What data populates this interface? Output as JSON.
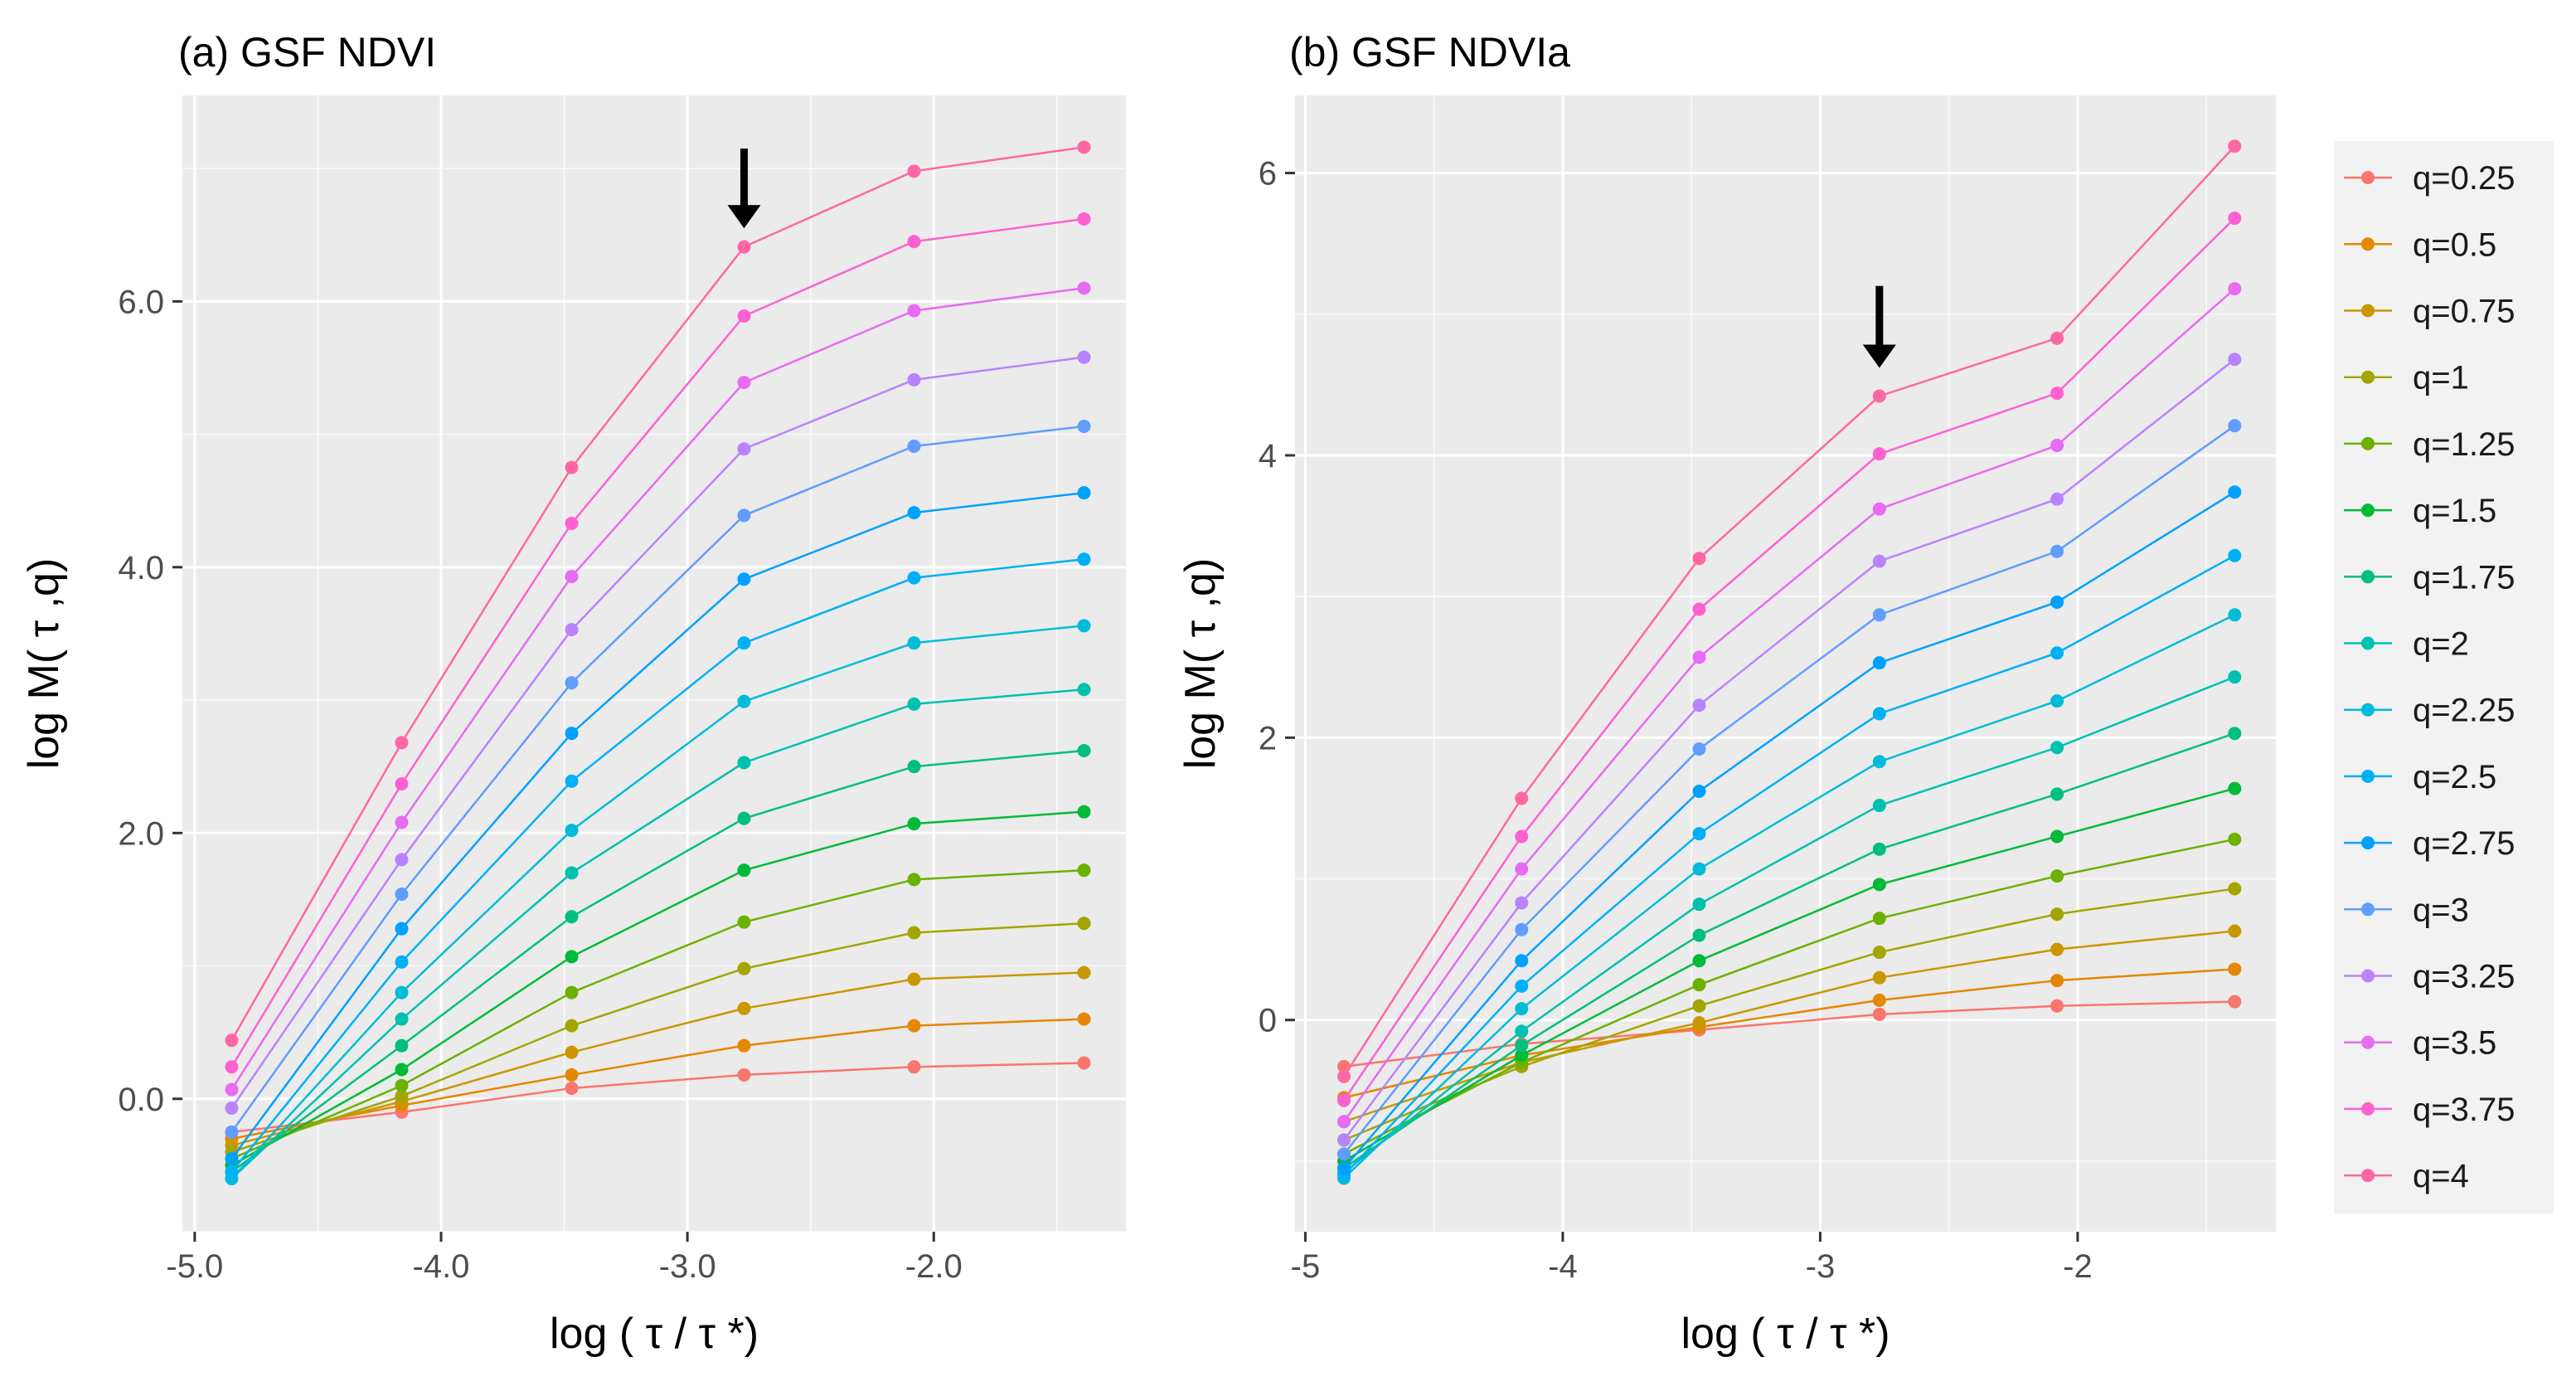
{
  "chart_data": [
    {
      "type": "line",
      "panel_id": "a",
      "title": "(a) GSF NDVI",
      "xlabel": "log ( τ / τ *)",
      "ylabel": "log M( τ ,q)",
      "x": [
        -4.85,
        -4.16,
        -3.47,
        -2.77,
        -2.08,
        -1.39
      ],
      "xlim": [
        -5.05,
        -1.22
      ],
      "ylim": [
        -1.0,
        7.55
      ],
      "x_ticks": [
        -5.0,
        -4.0,
        -3.0,
        -2.0
      ],
      "x_tick_labels": [
        "-5.0",
        "-4.0",
        "-3.0",
        "-2.0"
      ],
      "y_ticks": [
        0.0,
        2.0,
        4.0,
        6.0
      ],
      "y_tick_labels": [
        "0.0",
        "2.0",
        "4.0",
        "6.0"
      ],
      "grid": true,
      "arrow": {
        "x": -2.77,
        "y_tip": 6.55,
        "y_tail": 7.15
      },
      "series": [
        {
          "name": "q=0.25",
          "values": [
            -0.25,
            -0.1,
            0.08,
            0.18,
            0.24,
            0.27
          ]
        },
        {
          "name": "q=0.5",
          "values": [
            -0.3,
            -0.05,
            0.18,
            0.4,
            0.55,
            0.6
          ]
        },
        {
          "name": "q=0.75",
          "values": [
            -0.35,
            -0.02,
            0.35,
            0.68,
            0.9,
            0.95
          ]
        },
        {
          "name": "q=1",
          "values": [
            -0.4,
            0.02,
            0.55,
            0.98,
            1.25,
            1.32
          ]
        },
        {
          "name": "q=1.25",
          "values": [
            -0.45,
            0.1,
            0.8,
            1.33,
            1.65,
            1.72
          ]
        },
        {
          "name": "q=1.5",
          "values": [
            -0.5,
            0.22,
            1.07,
            1.72,
            2.07,
            2.16
          ]
        },
        {
          "name": "q=1.75",
          "values": [
            -0.55,
            0.4,
            1.37,
            2.11,
            2.5,
            2.62
          ]
        },
        {
          "name": "q=2",
          "values": [
            -0.6,
            0.6,
            1.7,
            2.53,
            2.97,
            3.08
          ]
        },
        {
          "name": "q=2.25",
          "values": [
            -0.6,
            0.8,
            2.02,
            2.99,
            3.43,
            3.56
          ]
        },
        {
          "name": "q=2.5",
          "values": [
            -0.55,
            1.03,
            2.39,
            3.43,
            3.92,
            4.06
          ]
        },
        {
          "name": "q=2.75",
          "values": [
            -0.45,
            1.28,
            2.75,
            3.91,
            4.41,
            4.56
          ]
        },
        {
          "name": "q=3",
          "values": [
            -0.25,
            1.54,
            3.13,
            4.39,
            4.91,
            5.06
          ]
        },
        {
          "name": "q=3.25",
          "values": [
            -0.07,
            1.8,
            3.53,
            4.89,
            5.41,
            5.58
          ]
        },
        {
          "name": "q=3.5",
          "values": [
            0.07,
            2.08,
            3.93,
            5.39,
            5.93,
            6.1
          ]
        },
        {
          "name": "q=3.75",
          "values": [
            0.24,
            2.37,
            4.33,
            5.89,
            6.45,
            6.62
          ]
        },
        {
          "name": "q=4",
          "values": [
            0.44,
            2.68,
            4.75,
            6.41,
            6.98,
            7.16
          ]
        }
      ]
    },
    {
      "type": "line",
      "panel_id": "b",
      "title": "(b) GSF NDVIa",
      "xlabel": "log ( τ / τ *)",
      "ylabel": "log M( τ ,q)",
      "x": [
        -4.85,
        -4.16,
        -3.47,
        -2.77,
        -2.08,
        -1.39
      ],
      "xlim": [
        -5.04,
        -1.23
      ],
      "ylim": [
        -1.5,
        6.55
      ],
      "x_ticks": [
        -5,
        -4,
        -3,
        -2
      ],
      "x_tick_labels": [
        "-5",
        "-4",
        "-3",
        "-2"
      ],
      "y_ticks": [
        0,
        2,
        4,
        6
      ],
      "y_tick_labels": [
        "0",
        "2",
        "4",
        "6"
      ],
      "grid": true,
      "arrow": {
        "x": -2.77,
        "y_tip": 4.62,
        "y_tail": 5.2
      },
      "series": [
        {
          "name": "q=0.25",
          "values": [
            -0.33,
            -0.17,
            -0.07,
            0.04,
            0.1,
            0.13
          ]
        },
        {
          "name": "q=0.5",
          "values": [
            -0.55,
            -0.25,
            -0.05,
            0.14,
            0.28,
            0.36
          ]
        },
        {
          "name": "q=0.75",
          "values": [
            -0.72,
            -0.3,
            -0.02,
            0.3,
            0.5,
            0.63
          ]
        },
        {
          "name": "q=1",
          "values": [
            -0.85,
            -0.33,
            0.1,
            0.48,
            0.75,
            0.93
          ]
        },
        {
          "name": "q=1.25",
          "values": [
            -0.95,
            -0.3,
            0.25,
            0.72,
            1.02,
            1.28
          ]
        },
        {
          "name": "q=1.5",
          "values": [
            -1.0,
            -0.25,
            0.42,
            0.96,
            1.3,
            1.64
          ]
        },
        {
          "name": "q=1.75",
          "values": [
            -1.05,
            -0.18,
            0.6,
            1.21,
            1.6,
            2.03
          ]
        },
        {
          "name": "q=2",
          "values": [
            -1.08,
            -0.08,
            0.82,
            1.52,
            1.93,
            2.43
          ]
        },
        {
          "name": "q=2.25",
          "values": [
            -1.12,
            0.08,
            1.07,
            1.83,
            2.26,
            2.87
          ]
        },
        {
          "name": "q=2.5",
          "values": [
            -1.1,
            0.24,
            1.32,
            2.17,
            2.6,
            3.29
          ]
        },
        {
          "name": "q=2.75",
          "values": [
            -1.05,
            0.42,
            1.62,
            2.53,
            2.96,
            3.74
          ]
        },
        {
          "name": "q=3",
          "values": [
            -0.95,
            0.64,
            1.92,
            2.87,
            3.32,
            4.21
          ]
        },
        {
          "name": "q=3.25",
          "values": [
            -0.85,
            0.83,
            2.23,
            3.25,
            3.69,
            4.68
          ]
        },
        {
          "name": "q=3.5",
          "values": [
            -0.72,
            1.07,
            2.57,
            3.62,
            4.07,
            5.18
          ]
        },
        {
          "name": "q=3.75",
          "values": [
            -0.57,
            1.3,
            2.91,
            4.01,
            4.44,
            5.68
          ]
        },
        {
          "name": "q=4",
          "values": [
            -0.4,
            1.57,
            3.27,
            4.42,
            4.83,
            6.19
          ]
        }
      ]
    }
  ],
  "legend": {
    "placement": "right",
    "entries": [
      "q=0.25",
      "q=0.5",
      "q=0.75",
      "q=1",
      "q=1.25",
      "q=1.5",
      "q=1.75",
      "q=2",
      "q=2.25",
      "q=2.5",
      "q=2.75",
      "q=3",
      "q=3.25",
      "q=3.5",
      "q=3.75",
      "q=4"
    ]
  },
  "colors": {
    "panel_background": "#ebebeb",
    "grid_major": "#ffffff",
    "arrow": "#000000",
    "series": [
      "#f8766d",
      "#e58700",
      "#c99800",
      "#a3a500",
      "#6bb100",
      "#00ba38",
      "#00bf7d",
      "#00c0af",
      "#00bcd8",
      "#00b0f6",
      "#00a0ff",
      "#619cff",
      "#b983ff",
      "#e76bf3",
      "#fd61d1",
      "#ff67a4"
    ]
  }
}
